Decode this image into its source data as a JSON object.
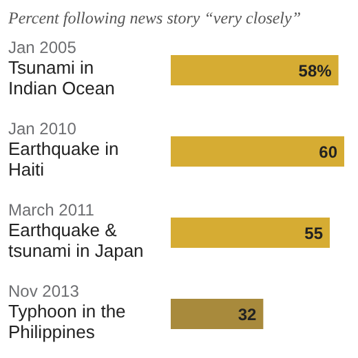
{
  "chart_data": {
    "type": "bar",
    "orientation": "horizontal",
    "title": "Percent following news story “very closely”",
    "categories": [
      "Jan 2005\nTsunami in\nIndian Ocean",
      "Jan 2010\nEarthquake in\nHaiti",
      "March 2011\nEarthquake &\ntsunami in Japan",
      "Nov 2013\nTyphoon in the\nPhilippines"
    ],
    "values": [
      58,
      60,
      55,
      32
    ],
    "value_labels": [
      "58%",
      "60",
      "55",
      "32"
    ],
    "colors": [
      "#d6ac33",
      "#d6ac33",
      "#d6ac33",
      "#a88a3c"
    ]
  }
}
